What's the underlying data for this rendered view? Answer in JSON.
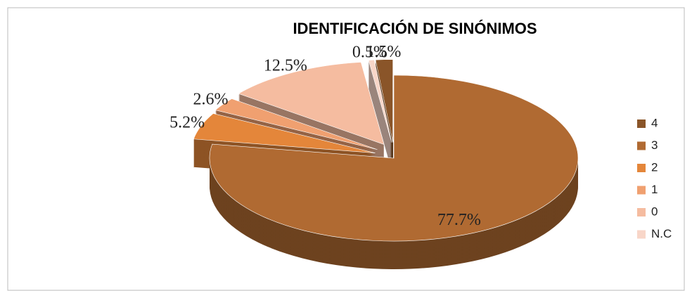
{
  "chart_data": {
    "type": "pie",
    "title": "IDENTIFICACIÓN DE SINÓNIMOS",
    "categories": [
      "4",
      "3",
      "2",
      "1",
      "0",
      "N.C"
    ],
    "values": [
      1.5,
      77.7,
      5.2,
      2.6,
      12.5,
      0.5
    ],
    "value_labels": [
      "1.5%",
      "77.7%",
      "5.2%",
      "2.6%",
      "12.5%",
      "0.5%"
    ],
    "colors": [
      "#8a5529",
      "#b06a32",
      "#e4863a",
      "#f0a070",
      "#f5bca0",
      "#f8d6c8"
    ],
    "legend": "right"
  }
}
